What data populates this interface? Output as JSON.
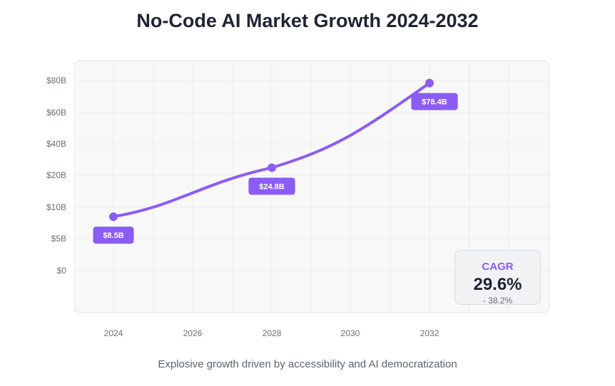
{
  "title": "No-Code AI Market Growth 2024-2032",
  "caption": "Explosive growth driven by accessibility and AI democratization",
  "colors": {
    "accent": "#8b5cf6",
    "grid": "#ececef",
    "panel": "#f8f8f9"
  },
  "cagr": {
    "label": "CAGR",
    "value": "29.6%",
    "range": "- 38.2%"
  },
  "chart_data": {
    "type": "line",
    "title": "No-Code AI Market Growth 2024-2032",
    "xlabel": "",
    "ylabel": "",
    "x_ticks": [
      "2024",
      "2026",
      "2028",
      "2030",
      "2032"
    ],
    "y_ticks": [
      "$80B",
      "$60B",
      "$40B",
      "$20B",
      "$10B",
      "$5B",
      "$0"
    ],
    "points": [
      {
        "x": "2024",
        "y": 8.5,
        "label": "$8.5B"
      },
      {
        "x": "2028",
        "y": 24.8,
        "label": "$24.8B"
      },
      {
        "x": "2032",
        "y": 78.4,
        "label": "$78.4B"
      }
    ],
    "grid": true,
    "legend": "none"
  }
}
